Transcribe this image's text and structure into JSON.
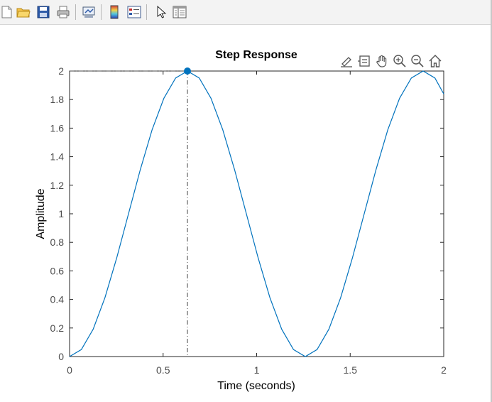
{
  "toolbar": {
    "buttons": [
      {
        "name": "new-figure-button",
        "icon": "new-file-icon"
      },
      {
        "name": "open-file-button",
        "icon": "folder-icon"
      },
      {
        "name": "save-button",
        "icon": "floppy-disk-icon"
      },
      {
        "name": "print-button",
        "icon": "printer-icon"
      },
      {
        "name": "link-plot-button",
        "icon": "link-icon"
      },
      {
        "name": "insert-colorbar-button",
        "icon": "colorbar-icon"
      },
      {
        "name": "insert-legend-button",
        "icon": "legend-icon"
      },
      {
        "name": "edit-plot-button",
        "icon": "arrow-cursor-icon"
      },
      {
        "name": "property-inspector-button",
        "icon": "inspector-icon"
      }
    ]
  },
  "axes_toolbar": [
    "brush-icon",
    "data-tips-icon",
    "pan-hand-icon",
    "zoom-in-icon",
    "zoom-out-icon",
    "home-icon"
  ],
  "colors": {
    "line": "#0072bd",
    "axis": "#262626",
    "tick_label": "#4d4d4d"
  },
  "chart_data": {
    "type": "line",
    "title": "Step Response",
    "xlabel": "Time (seconds)",
    "ylabel": "Amplitude",
    "xlim": [
      0,
      2
    ],
    "ylim": [
      0,
      2
    ],
    "xticks": [
      0,
      0.5,
      1,
      1.5,
      2
    ],
    "xtick_labels": [
      "0",
      "0.5",
      "1",
      "1.5",
      "2"
    ],
    "yticks": [
      0,
      0.2,
      0.4,
      0.6,
      0.8,
      1,
      1.2,
      1.4,
      1.6,
      1.8,
      2
    ],
    "ytick_labels": [
      "0",
      "0.2",
      "0.4",
      "0.6",
      "0.8",
      "1",
      "1.2",
      "1.4",
      "1.6",
      "1.8",
      "2"
    ],
    "grid": false,
    "series": [
      {
        "x": [
          0,
          0.063,
          0.126,
          0.189,
          0.252,
          0.315,
          0.378,
          0.441,
          0.504,
          0.567,
          0.63,
          0.693,
          0.756,
          0.819,
          0.882,
          0.945,
          1.008,
          1.071,
          1.134,
          1.197,
          1.26,
          1.323,
          1.386,
          1.449,
          1.512,
          1.575,
          1.638,
          1.701,
          1.764,
          1.827,
          1.89,
          1.953,
          2.0
        ],
        "y": [
          0,
          0.049,
          0.191,
          0.412,
          0.691,
          1.0,
          1.309,
          1.588,
          1.809,
          1.951,
          2.0,
          1.951,
          1.809,
          1.588,
          1.309,
          1.0,
          0.691,
          0.412,
          0.191,
          0.049,
          0.0,
          0.049,
          0.191,
          0.412,
          0.691,
          1.0,
          1.309,
          1.588,
          1.809,
          1.951,
          2.0,
          1.951,
          1.84
        ]
      }
    ],
    "marker": {
      "x": 0.63,
      "y": 2.0
    }
  }
}
